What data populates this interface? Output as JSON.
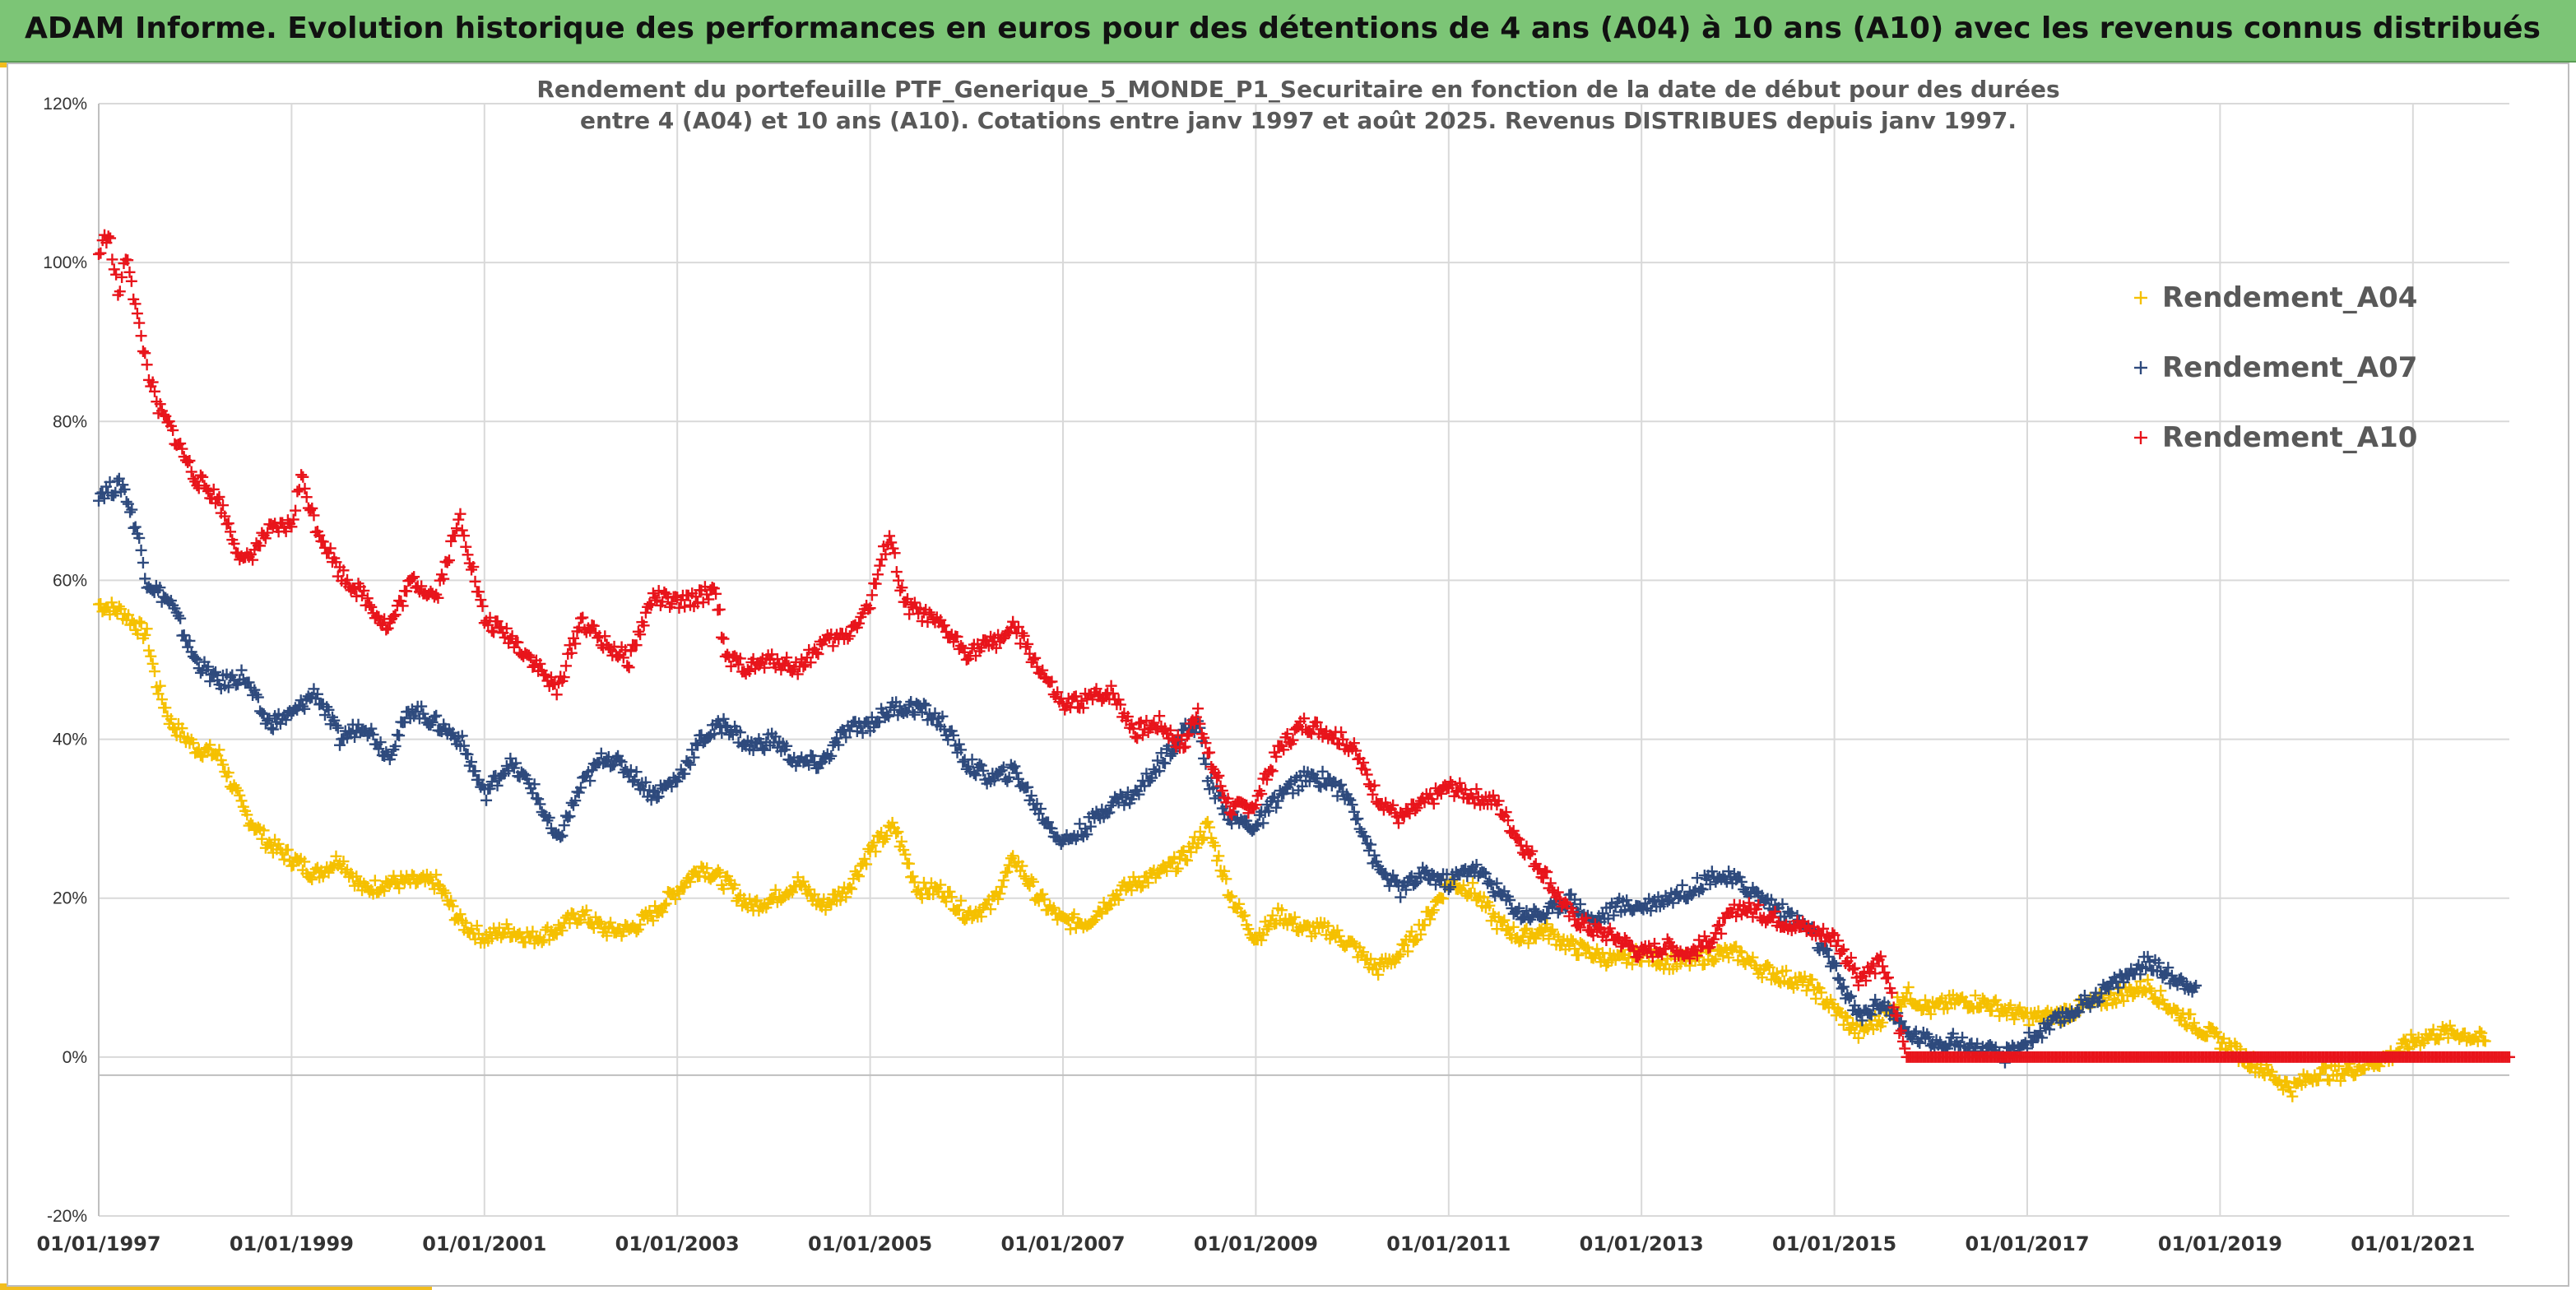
{
  "header": {
    "title": "ADAM Informe. Evolution historique des performances en euros pour des détentions de 4 ans (A04) à 10 ans (A10) avec les revenus connus distribués"
  },
  "colors": {
    "banner": "#7cc576",
    "accent": "#f2bd1d",
    "A04": "#f5c000",
    "A07": "#2e4a7d",
    "A10": "#e8141b"
  },
  "chart_data": {
    "type": "scatter",
    "title_lines": [
      "Rendement du portefeuille PTF_Generique_5_MONDE_P1_Securitaire  en fonction de la date de début pour des durées",
      "entre 4 (A04) et 10 ans (A10). Cotations entre janv 1997 et août 2025. Revenus DISTRIBUES depuis janv 1997."
    ],
    "y_tick_labels": [
      "120%",
      "100%",
      "80%",
      "60%",
      "40%",
      "20%",
      "0%",
      "-20%"
    ],
    "y_ticks": [
      1.2,
      1.0,
      0.8,
      0.6,
      0.4,
      0.2,
      0,
      -0.2
    ],
    "ylim": [
      -0.2,
      1.2
    ],
    "x_tick_labels": [
      "01/01/1997",
      "01/01/1999",
      "01/01/2001",
      "01/01/2003",
      "01/01/2005",
      "01/01/2007",
      "01/01/2009",
      "01/01/2011",
      "01/01/2013",
      "01/01/2015",
      "01/01/2017",
      "01/01/2019",
      "01/01/2021"
    ],
    "x_ticks": [
      1997,
      1999,
      2001,
      2003,
      2005,
      2007,
      2009,
      2011,
      2013,
      2015,
      2017,
      2019,
      2021
    ],
    "xlim": [
      1997,
      2022
    ],
    "grid": true,
    "legend_position": "top-right",
    "series": [
      {
        "name": "Rendement_A04",
        "color_key": "A04",
        "points": [
          [
            1997.0,
            0.57
          ],
          [
            1997.25,
            0.56
          ],
          [
            1997.5,
            0.53
          ],
          [
            1997.6,
            0.47
          ],
          [
            1997.75,
            0.42
          ],
          [
            1998.0,
            0.39
          ],
          [
            1998.25,
            0.38
          ],
          [
            1998.5,
            0.31
          ],
          [
            1998.75,
            0.27
          ],
          [
            1999.0,
            0.25
          ],
          [
            1999.25,
            0.23
          ],
          [
            1999.5,
            0.25
          ],
          [
            1999.75,
            0.21
          ],
          [
            2000.0,
            0.22
          ],
          [
            2000.25,
            0.22
          ],
          [
            2000.5,
            0.22
          ],
          [
            2000.75,
            0.17
          ],
          [
            2001.0,
            0.15
          ],
          [
            2001.25,
            0.16
          ],
          [
            2001.5,
            0.15
          ],
          [
            2001.75,
            0.16
          ],
          [
            2002.0,
            0.18
          ],
          [
            2002.25,
            0.16
          ],
          [
            2002.5,
            0.16
          ],
          [
            2002.75,
            0.18
          ],
          [
            2003.0,
            0.21
          ],
          [
            2003.25,
            0.24
          ],
          [
            2003.5,
            0.22
          ],
          [
            2003.75,
            0.19
          ],
          [
            2004.0,
            0.2
          ],
          [
            2004.25,
            0.22
          ],
          [
            2004.5,
            0.19
          ],
          [
            2004.75,
            0.21
          ],
          [
            2005.0,
            0.26
          ],
          [
            2005.25,
            0.29
          ],
          [
            2005.5,
            0.21
          ],
          [
            2005.75,
            0.21
          ],
          [
            2006.0,
            0.18
          ],
          [
            2006.25,
            0.19
          ],
          [
            2006.5,
            0.25
          ],
          [
            2006.75,
            0.2
          ],
          [
            2007.0,
            0.17
          ],
          [
            2007.25,
            0.17
          ],
          [
            2007.5,
            0.2
          ],
          [
            2007.75,
            0.22
          ],
          [
            2008.0,
            0.23
          ],
          [
            2008.25,
            0.25
          ],
          [
            2008.5,
            0.29
          ],
          [
            2008.75,
            0.2
          ],
          [
            2009.0,
            0.15
          ],
          [
            2009.25,
            0.18
          ],
          [
            2009.5,
            0.16
          ],
          [
            2009.75,
            0.16
          ],
          [
            2010.0,
            0.14
          ],
          [
            2010.25,
            0.11
          ],
          [
            2010.5,
            0.13
          ],
          [
            2010.75,
            0.17
          ],
          [
            2011.0,
            0.22
          ],
          [
            2011.25,
            0.21
          ],
          [
            2011.5,
            0.17
          ],
          [
            2011.75,
            0.15
          ],
          [
            2012.0,
            0.16
          ],
          [
            2012.25,
            0.14
          ],
          [
            2012.5,
            0.13
          ],
          [
            2012.75,
            0.12
          ],
          [
            2013.0,
            0.13
          ],
          [
            2013.25,
            0.12
          ],
          [
            2013.5,
            0.12
          ],
          [
            2013.75,
            0.13
          ],
          [
            2014.0,
            0.13
          ],
          [
            2014.25,
            0.11
          ],
          [
            2014.5,
            0.1
          ],
          [
            2014.75,
            0.09
          ],
          [
            2015.0,
            0.06
          ],
          [
            2015.25,
            0.03
          ],
          [
            2015.5,
            0.05
          ],
          [
            2015.75,
            0.08
          ],
          [
            2016.0,
            0.06
          ],
          [
            2016.25,
            0.07
          ],
          [
            2016.5,
            0.07
          ],
          [
            2016.75,
            0.06
          ],
          [
            2017.0,
            0.05
          ],
          [
            2017.25,
            0.05
          ],
          [
            2017.5,
            0.06
          ],
          [
            2017.75,
            0.07
          ],
          [
            2018.0,
            0.08
          ],
          [
            2018.25,
            0.09
          ],
          [
            2018.5,
            0.06
          ],
          [
            2018.75,
            0.04
          ],
          [
            2019.0,
            0.02
          ],
          [
            2019.25,
            0.0
          ],
          [
            2019.5,
            -0.02
          ],
          [
            2019.75,
            -0.04
          ],
          [
            2020.0,
            -0.02
          ],
          [
            2020.25,
            -0.02
          ],
          [
            2020.5,
            -0.01
          ],
          [
            2020.75,
            0.0
          ],
          [
            2021.0,
            0.02
          ],
          [
            2021.25,
            0.03
          ],
          [
            2021.5,
            0.03
          ],
          [
            2021.75,
            0.02
          ]
        ]
      },
      {
        "name": "Rendement_A07",
        "color_key": "A07",
        "points": [
          [
            1997.0,
            0.71
          ],
          [
            1997.25,
            0.72
          ],
          [
            1997.4,
            0.66
          ],
          [
            1997.5,
            0.6
          ],
          [
            1997.75,
            0.57
          ],
          [
            1998.0,
            0.5
          ],
          [
            1998.25,
            0.47
          ],
          [
            1998.5,
            0.48
          ],
          [
            1998.75,
            0.42
          ],
          [
            1999.0,
            0.43
          ],
          [
            1999.25,
            0.46
          ],
          [
            1999.5,
            0.4
          ],
          [
            1999.75,
            0.42
          ],
          [
            2000.0,
            0.38
          ],
          [
            2000.25,
            0.44
          ],
          [
            2000.5,
            0.42
          ],
          [
            2000.75,
            0.4
          ],
          [
            2001.0,
            0.33
          ],
          [
            2001.25,
            0.37
          ],
          [
            2001.5,
            0.34
          ],
          [
            2001.75,
            0.27
          ],
          [
            2002.0,
            0.34
          ],
          [
            2002.25,
            0.38
          ],
          [
            2002.5,
            0.36
          ],
          [
            2002.75,
            0.33
          ],
          [
            2003.0,
            0.35
          ],
          [
            2003.25,
            0.4
          ],
          [
            2003.5,
            0.42
          ],
          [
            2003.75,
            0.39
          ],
          [
            2004.0,
            0.4
          ],
          [
            2004.25,
            0.37
          ],
          [
            2004.5,
            0.37
          ],
          [
            2004.75,
            0.41
          ],
          [
            2005.0,
            0.42
          ],
          [
            2005.25,
            0.44
          ],
          [
            2005.5,
            0.44
          ],
          [
            2005.75,
            0.42
          ],
          [
            2006.0,
            0.37
          ],
          [
            2006.25,
            0.35
          ],
          [
            2006.5,
            0.36
          ],
          [
            2006.75,
            0.31
          ],
          [
            2007.0,
            0.27
          ],
          [
            2007.25,
            0.29
          ],
          [
            2007.5,
            0.32
          ],
          [
            2007.75,
            0.33
          ],
          [
            2008.0,
            0.37
          ],
          [
            2008.25,
            0.41
          ],
          [
            2008.4,
            0.42
          ],
          [
            2008.5,
            0.35
          ],
          [
            2008.75,
            0.3
          ],
          [
            2009.0,
            0.29
          ],
          [
            2009.25,
            0.33
          ],
          [
            2009.5,
            0.35
          ],
          [
            2009.75,
            0.35
          ],
          [
            2010.0,
            0.32
          ],
          [
            2010.25,
            0.24
          ],
          [
            2010.5,
            0.21
          ],
          [
            2010.75,
            0.23
          ],
          [
            2011.0,
            0.22
          ],
          [
            2011.25,
            0.24
          ],
          [
            2011.5,
            0.21
          ],
          [
            2011.75,
            0.18
          ],
          [
            2012.0,
            0.18
          ],
          [
            2012.25,
            0.2
          ],
          [
            2012.5,
            0.17
          ],
          [
            2012.75,
            0.19
          ],
          [
            2013.0,
            0.19
          ],
          [
            2013.25,
            0.2
          ],
          [
            2013.5,
            0.21
          ],
          [
            2013.75,
            0.23
          ],
          [
            2014.0,
            0.22
          ],
          [
            2014.25,
            0.2
          ],
          [
            2014.5,
            0.18
          ],
          [
            2014.75,
            0.16
          ],
          [
            2015.0,
            0.11
          ],
          [
            2015.25,
            0.05
          ],
          [
            2015.5,
            0.07
          ],
          [
            2015.75,
            0.03
          ],
          [
            2016.0,
            0.02
          ],
          [
            2016.25,
            0.02
          ],
          [
            2016.5,
            0.01
          ],
          [
            2016.75,
            0.0
          ],
          [
            2017.0,
            0.02
          ],
          [
            2017.25,
            0.04
          ],
          [
            2017.5,
            0.06
          ],
          [
            2017.75,
            0.08
          ],
          [
            2018.0,
            0.1
          ],
          [
            2018.25,
            0.12
          ],
          [
            2018.5,
            0.1
          ],
          [
            2018.75,
            0.09
          ]
        ]
      },
      {
        "name": "Rendement_A10",
        "color_key": "A10",
        "points": [
          [
            1997.0,
            1.01
          ],
          [
            1997.1,
            1.04
          ],
          [
            1997.2,
            0.96
          ],
          [
            1997.3,
            1.01
          ],
          [
            1997.4,
            0.93
          ],
          [
            1997.5,
            0.87
          ],
          [
            1997.6,
            0.82
          ],
          [
            1997.75,
            0.79
          ],
          [
            1998.0,
            0.73
          ],
          [
            1998.25,
            0.7
          ],
          [
            1998.5,
            0.62
          ],
          [
            1998.75,
            0.66
          ],
          [
            1999.0,
            0.67
          ],
          [
            1999.1,
            0.73
          ],
          [
            1999.25,
            0.67
          ],
          [
            1999.5,
            0.61
          ],
          [
            1999.75,
            0.58
          ],
          [
            2000.0,
            0.54
          ],
          [
            2000.25,
            0.6
          ],
          [
            2000.5,
            0.58
          ],
          [
            2000.75,
            0.68
          ],
          [
            2001.0,
            0.55
          ],
          [
            2001.25,
            0.53
          ],
          [
            2001.5,
            0.5
          ],
          [
            2001.75,
            0.46
          ],
          [
            2002.0,
            0.55
          ],
          [
            2002.25,
            0.52
          ],
          [
            2002.5,
            0.5
          ],
          [
            2002.75,
            0.58
          ],
          [
            2003.0,
            0.57
          ],
          [
            2003.25,
            0.58
          ],
          [
            2003.4,
            0.59
          ],
          [
            2003.5,
            0.5
          ],
          [
            2003.75,
            0.49
          ],
          [
            2004.0,
            0.5
          ],
          [
            2004.25,
            0.49
          ],
          [
            2004.5,
            0.52
          ],
          [
            2004.75,
            0.53
          ],
          [
            2005.0,
            0.57
          ],
          [
            2005.2,
            0.66
          ],
          [
            2005.35,
            0.57
          ],
          [
            2005.5,
            0.56
          ],
          [
            2005.75,
            0.54
          ],
          [
            2006.0,
            0.51
          ],
          [
            2006.25,
            0.52
          ],
          [
            2006.5,
            0.54
          ],
          [
            2006.75,
            0.49
          ],
          [
            2007.0,
            0.44
          ],
          [
            2007.25,
            0.45
          ],
          [
            2007.5,
            0.46
          ],
          [
            2007.75,
            0.41
          ],
          [
            2008.0,
            0.42
          ],
          [
            2008.25,
            0.39
          ],
          [
            2008.4,
            0.44
          ],
          [
            2008.5,
            0.38
          ],
          [
            2008.75,
            0.31
          ],
          [
            2009.0,
            0.32
          ],
          [
            2009.25,
            0.39
          ],
          [
            2009.5,
            0.42
          ],
          [
            2009.75,
            0.41
          ],
          [
            2010.0,
            0.39
          ],
          [
            2010.25,
            0.33
          ],
          [
            2010.5,
            0.3
          ],
          [
            2010.75,
            0.32
          ],
          [
            2011.0,
            0.34
          ],
          [
            2011.25,
            0.33
          ],
          [
            2011.5,
            0.32
          ],
          [
            2011.75,
            0.27
          ],
          [
            2012.0,
            0.23
          ],
          [
            2012.25,
            0.18
          ],
          [
            2012.5,
            0.16
          ],
          [
            2012.75,
            0.15
          ],
          [
            2013.0,
            0.13
          ],
          [
            2013.25,
            0.14
          ],
          [
            2013.5,
            0.13
          ],
          [
            2013.75,
            0.15
          ],
          [
            2014.0,
            0.19
          ],
          [
            2014.25,
            0.18
          ],
          [
            2014.5,
            0.17
          ],
          [
            2014.75,
            0.16
          ],
          [
            2015.0,
            0.15
          ],
          [
            2015.25,
            0.1
          ],
          [
            2015.5,
            0.12
          ],
          [
            2015.75,
            0.0
          ],
          [
            2016.0,
            0.0
          ],
          [
            2016.5,
            0.0
          ],
          [
            2017.0,
            0.0
          ],
          [
            2017.5,
            0.0
          ],
          [
            2018.0,
            0.0
          ],
          [
            2018.5,
            0.0
          ],
          [
            2019.0,
            0.0
          ],
          [
            2019.5,
            0.0
          ],
          [
            2020.0,
            0.0
          ],
          [
            2020.5,
            0.0
          ],
          [
            2021.0,
            0.0
          ],
          [
            2021.5,
            0.0
          ],
          [
            2022.0,
            0.0
          ]
        ]
      }
    ]
  }
}
